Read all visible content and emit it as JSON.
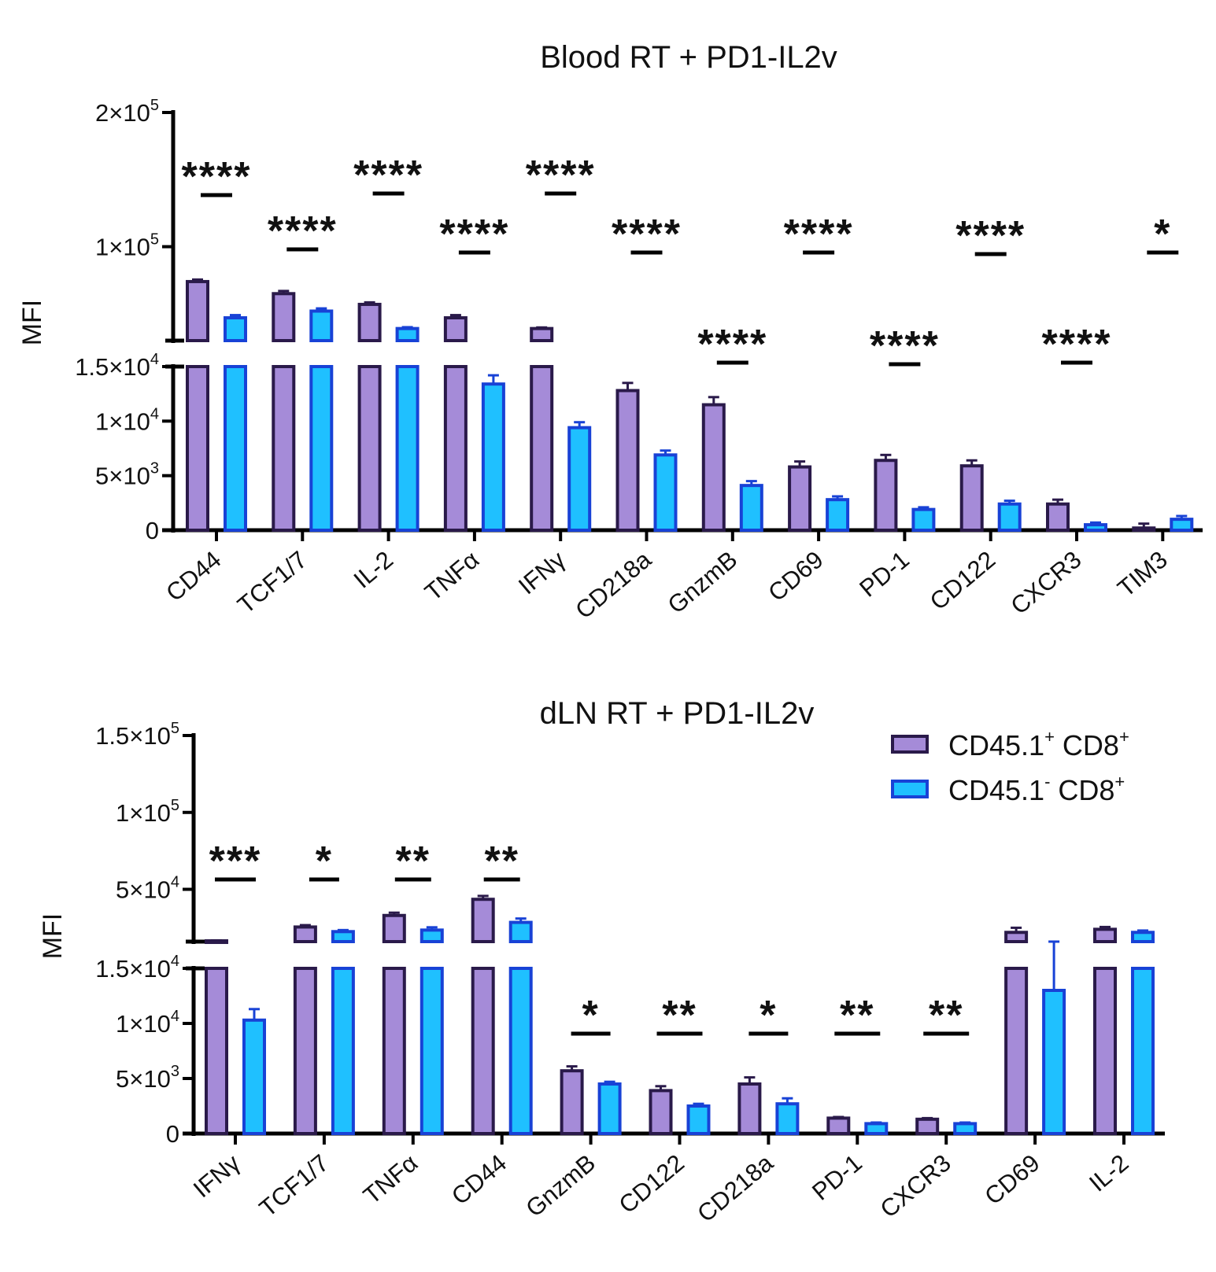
{
  "legend": {
    "items": [
      {
        "label": "CD45.1",
        "sup": "+",
        "rest": " CD8",
        "rest_sup": "+",
        "fill": "#a58bd8",
        "stroke": "#2a1a4a"
      },
      {
        "label": "CD45.1",
        "sup": "-",
        "rest": " CD8",
        "rest_sup": "+",
        "fill": "#1fc0ff",
        "stroke": "#1842d6"
      }
    ]
  },
  "chart_data": [
    {
      "type": "bar",
      "title": "Blood RT + PD1-IL2v",
      "ylabel": "MFI",
      "xlabel": "",
      "y_axis": "broken",
      "segments": [
        {
          "range": [
            0,
            15000
          ],
          "ticks": [
            {
              "value": 0,
              "mant": "0",
              "exp": ""
            },
            {
              "value": 5000,
              "mant": "5×10",
              "exp": "3"
            },
            {
              "value": 10000,
              "mant": "1×10",
              "exp": "4"
            },
            {
              "value": 15000,
              "mant": "1.5×10",
              "exp": "4"
            }
          ]
        },
        {
          "range": [
            30000,
            200000
          ],
          "ticks": [
            {
              "value": 100000,
              "mant": "1×10",
              "exp": "5"
            },
            {
              "value": 200000,
              "mant": "2×10",
              "exp": "5"
            }
          ]
        }
      ],
      "categories": [
        "CD44",
        "TCF1/7",
        "IL-2",
        "TNFα",
        "IFNγ",
        "CD218a",
        "GnzmB",
        "CD69",
        "PD-1",
        "CD122",
        "CXCR3",
        "TIM3"
      ],
      "series": [
        {
          "name": "CD45.1+ CD8+",
          "values": [
            74000,
            65000,
            57000,
            47000,
            39000,
            12800,
            11500,
            5800,
            6400,
            5900,
            2400,
            200
          ],
          "errors": [
            1500,
            2000,
            1500,
            2000,
            800,
            700,
            700,
            500,
            500,
            500,
            400,
            400
          ]
        },
        {
          "name": "CD45.1- CD8+",
          "values": [
            47000,
            52000,
            39000,
            13400,
            9400,
            6900,
            4100,
            2800,
            1900,
            2400,
            500,
            1000
          ],
          "errors": [
            2000,
            2000,
            1000,
            800,
            500,
            400,
            400,
            300,
            200,
            300,
            200,
            300
          ]
        }
      ],
      "significance": [
        "****",
        "****",
        "****",
        "****",
        "****",
        "****",
        "****",
        "****",
        "****",
        "****",
        "****",
        "*"
      ]
    },
    {
      "type": "bar",
      "title": "dLN RT + PD1-IL2v",
      "ylabel": "MFI",
      "xlabel": "",
      "y_axis": "broken",
      "segments": [
        {
          "range": [
            0,
            15000
          ],
          "ticks": [
            {
              "value": 0,
              "mant": "0",
              "exp": ""
            },
            {
              "value": 5000,
              "mant": "5×10",
              "exp": "3"
            },
            {
              "value": 10000,
              "mant": "1×10",
              "exp": "4"
            },
            {
              "value": 15000,
              "mant": "1.5×10",
              "exp": "4"
            }
          ]
        },
        {
          "range": [
            16000,
            150000
          ],
          "ticks": [
            {
              "value": 50000,
              "mant": "5×10",
              "exp": "4"
            },
            {
              "value": 100000,
              "mant": "1×10",
              "exp": "5"
            },
            {
              "value": 150000,
              "mant": "1.5×10",
              "exp": "5"
            }
          ]
        }
      ],
      "categories": [
        "IFNγ",
        "TCF1/7",
        "TNFα",
        "CD44",
        "GnzmB",
        "CD122",
        "CD218a",
        "PD-1",
        "CXCR3",
        "CD69",
        "IL-2"
      ],
      "series": [
        {
          "name": "CD45.1+ CD8+",
          "values": [
            16500,
            25500,
            33000,
            43500,
            5700,
            3900,
            4500,
            1400,
            1300,
            22000,
            24000
          ],
          "errors": [
            300,
            1200,
            1800,
            2200,
            400,
            400,
            600,
            100,
            100,
            3000,
            1500
          ],
          "error_up": true
        },
        {
          "name": "CD45.1- CD8+",
          "values": [
            10300,
            22500,
            23500,
            28500,
            4500,
            2500,
            2700,
            900,
            900,
            13000,
            22000
          ],
          "errors": [
            1000,
            1000,
            1800,
            2500,
            200,
            200,
            500,
            100,
            100,
            3000,
            1200
          ],
          "error_up": true
        }
      ],
      "significance": [
        "***",
        "*",
        "**",
        "**",
        "*",
        "**",
        "*",
        "**",
        "**",
        "",
        ""
      ]
    }
  ]
}
